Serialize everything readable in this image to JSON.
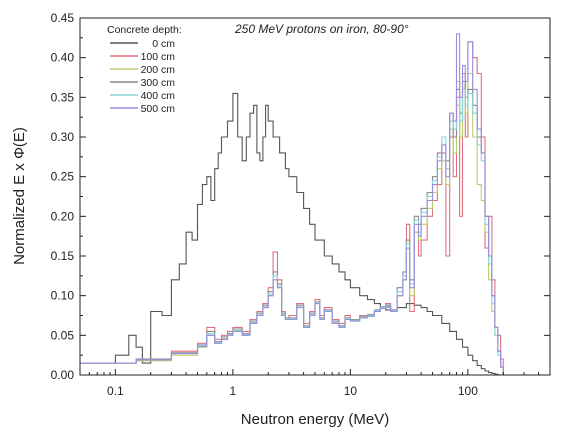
{
  "chart_data": {
    "type": "line",
    "title": "",
    "annotation": "250 MeV protons on iron, 80-90°",
    "xlabel": "Neutron energy (MeV)",
    "ylabel": "Normalized  E x Φ(E)",
    "xscale": "log",
    "xlim": [
      0.05,
      500
    ],
    "ylim": [
      0,
      0.45
    ],
    "grid": false,
    "x_ticks": [
      0.1,
      1,
      10,
      100
    ],
    "x_tick_labels": [
      "0.1",
      "1",
      "10",
      "100"
    ],
    "y_ticks": [
      0,
      0.05,
      0.1,
      0.15,
      0.2,
      0.25,
      0.3,
      0.35,
      0.4,
      0.45
    ],
    "y_tick_labels": [
      "0.00",
      "0.05",
      "0.10",
      "0.15",
      "0.20",
      "0.25",
      "0.30",
      "0.35",
      "0.40",
      "0.45"
    ],
    "legend": {
      "title": "Concrete depth:",
      "placement": "top-left"
    },
    "series": [
      {
        "name": "0 cm",
        "color": "#555555",
        "x": [
          0.05,
          0.1,
          0.13,
          0.15,
          0.17,
          0.2,
          0.25,
          0.3,
          0.35,
          0.4,
          0.45,
          0.5,
          0.55,
          0.6,
          0.65,
          0.7,
          0.75,
          0.8,
          0.9,
          1.0,
          1.1,
          1.2,
          1.3,
          1.4,
          1.5,
          1.6,
          1.7,
          1.8,
          1.9,
          2.0,
          2.2,
          2.5,
          2.8,
          3.0,
          3.5,
          4,
          4.5,
          5,
          6,
          7,
          8,
          9,
          10,
          12,
          14,
          16,
          18,
          20,
          25,
          30,
          35,
          40,
          45,
          50,
          60,
          70,
          80,
          90,
          100,
          110,
          120,
          130,
          140,
          150,
          160,
          170,
          180,
          190,
          200,
          220
        ],
        "y": [
          0.015,
          0.025,
          0.05,
          0.035,
          0.015,
          0.08,
          0.075,
          0.12,
          0.14,
          0.18,
          0.17,
          0.215,
          0.24,
          0.25,
          0.22,
          0.26,
          0.28,
          0.3,
          0.32,
          0.355,
          0.3,
          0.27,
          0.3,
          0.33,
          0.34,
          0.28,
          0.27,
          0.3,
          0.34,
          0.32,
          0.3,
          0.28,
          0.26,
          0.25,
          0.23,
          0.21,
          0.19,
          0.17,
          0.15,
          0.14,
          0.13,
          0.12,
          0.11,
          0.1,
          0.095,
          0.09,
          0.085,
          0.082,
          0.085,
          0.09,
          0.088,
          0.085,
          0.08,
          0.075,
          0.065,
          0.055,
          0.045,
          0.035,
          0.025,
          0.018,
          0.012,
          0.008,
          0.005,
          0.003,
          0.002,
          0.001,
          0.0,
          0.0,
          0.0,
          0.0
        ]
      },
      {
        "name": "100 cm",
        "color": "#e0707a",
        "x": [
          0.05,
          0.15,
          0.3,
          0.5,
          0.6,
          0.7,
          0.8,
          0.9,
          1.0,
          1.2,
          1.4,
          1.6,
          1.8,
          2.0,
          2.2,
          2.4,
          2.6,
          2.8,
          3.0,
          3.5,
          4,
          4.5,
          5,
          5.5,
          6,
          7,
          8,
          9,
          10,
          12,
          14,
          16,
          18,
          20,
          22,
          25,
          28,
          30,
          32,
          35,
          38,
          40,
          45,
          50,
          55,
          60,
          65,
          70,
          75,
          80,
          85,
          90,
          95,
          100,
          110,
          120,
          130,
          140,
          150,
          160,
          170,
          180,
          190,
          200
        ],
        "y": [
          0.015,
          0.02,
          0.03,
          0.04,
          0.06,
          0.045,
          0.05,
          0.055,
          0.06,
          0.055,
          0.07,
          0.08,
          0.09,
          0.11,
          0.155,
          0.12,
          0.08,
          0.07,
          0.075,
          0.09,
          0.065,
          0.08,
          0.095,
          0.075,
          0.085,
          0.07,
          0.065,
          0.075,
          0.07,
          0.075,
          0.075,
          0.08,
          0.085,
          0.09,
          0.08,
          0.1,
          0.12,
          0.19,
          0.08,
          0.18,
          0.15,
          0.17,
          0.2,
          0.22,
          0.24,
          0.28,
          0.15,
          0.3,
          0.25,
          0.35,
          0.2,
          0.38,
          0.3,
          0.42,
          0.4,
          0.38,
          0.3,
          0.16,
          0.2,
          0.12,
          0.06,
          0.05,
          0.02,
          0.0
        ]
      },
      {
        "name": "200 cm",
        "color": "#b8d068",
        "x": [
          0.05,
          0.15,
          0.3,
          0.5,
          0.6,
          0.7,
          0.8,
          0.9,
          1.0,
          1.2,
          1.4,
          1.6,
          1.8,
          2.0,
          2.2,
          2.4,
          2.6,
          2.8,
          3.0,
          3.5,
          4,
          4.5,
          5,
          5.5,
          6,
          7,
          8,
          9,
          10,
          12,
          14,
          16,
          18,
          20,
          22,
          25,
          28,
          30,
          32,
          35,
          38,
          40,
          45,
          50,
          55,
          60,
          65,
          70,
          75,
          80,
          85,
          90,
          95,
          100,
          110,
          120,
          130,
          140,
          150,
          160,
          170,
          180,
          190,
          200
        ],
        "y": [
          0.015,
          0.018,
          0.025,
          0.035,
          0.05,
          0.04,
          0.045,
          0.05,
          0.055,
          0.05,
          0.065,
          0.075,
          0.085,
          0.1,
          0.12,
          0.11,
          0.075,
          0.07,
          0.07,
          0.085,
          0.06,
          0.075,
          0.09,
          0.07,
          0.08,
          0.065,
          0.06,
          0.07,
          0.068,
          0.072,
          0.075,
          0.08,
          0.085,
          0.085,
          0.08,
          0.1,
          0.12,
          0.16,
          0.1,
          0.18,
          0.17,
          0.19,
          0.21,
          0.23,
          0.26,
          0.27,
          0.24,
          0.31,
          0.28,
          0.34,
          0.3,
          0.36,
          0.33,
          0.38,
          0.3,
          0.24,
          0.22,
          0.18,
          0.12,
          0.08,
          0.05,
          0.03,
          0.01,
          0.0
        ]
      },
      {
        "name": "300 cm",
        "color": "#8a8a8a",
        "x": [
          0.05,
          0.15,
          0.3,
          0.5,
          0.6,
          0.7,
          0.8,
          0.9,
          1.0,
          1.2,
          1.4,
          1.6,
          1.8,
          2.0,
          2.2,
          2.4,
          2.6,
          2.8,
          3.0,
          3.5,
          4,
          4.5,
          5,
          5.5,
          6,
          7,
          8,
          9,
          10,
          12,
          14,
          16,
          18,
          20,
          22,
          25,
          28,
          30,
          32,
          35,
          38,
          40,
          45,
          50,
          55,
          60,
          65,
          70,
          75,
          80,
          85,
          90,
          95,
          100,
          110,
          120,
          130,
          140,
          150,
          160,
          170,
          180,
          190,
          200
        ],
        "y": [
          0.015,
          0.02,
          0.028,
          0.038,
          0.055,
          0.042,
          0.048,
          0.052,
          0.058,
          0.052,
          0.068,
          0.078,
          0.088,
          0.105,
          0.13,
          0.115,
          0.078,
          0.072,
          0.072,
          0.088,
          0.062,
          0.078,
          0.092,
          0.072,
          0.082,
          0.068,
          0.062,
          0.072,
          0.07,
          0.074,
          0.076,
          0.082,
          0.086,
          0.088,
          0.082,
          0.11,
          0.13,
          0.17,
          0.12,
          0.2,
          0.19,
          0.21,
          0.23,
          0.25,
          0.28,
          0.29,
          0.27,
          0.33,
          0.3,
          0.36,
          0.33,
          0.37,
          0.35,
          0.36,
          0.34,
          0.3,
          0.28,
          0.2,
          0.15,
          0.1,
          0.06,
          0.03,
          0.01,
          0.0
        ]
      },
      {
        "name": "400 cm",
        "color": "#88d4d8",
        "x": [
          0.05,
          0.15,
          0.3,
          0.5,
          0.6,
          0.7,
          0.8,
          0.9,
          1.0,
          1.2,
          1.4,
          1.6,
          1.8,
          2.0,
          2.2,
          2.4,
          2.6,
          2.8,
          3.0,
          3.5,
          4,
          4.5,
          5,
          5.5,
          6,
          7,
          8,
          9,
          10,
          12,
          14,
          16,
          18,
          20,
          22,
          25,
          28,
          30,
          32,
          35,
          38,
          40,
          45,
          50,
          55,
          60,
          65,
          70,
          75,
          80,
          85,
          90,
          95,
          100,
          110,
          120,
          130,
          140,
          150,
          160,
          170,
          180,
          190,
          200
        ],
        "y": [
          0.015,
          0.019,
          0.027,
          0.037,
          0.052,
          0.041,
          0.046,
          0.051,
          0.056,
          0.051,
          0.066,
          0.076,
          0.086,
          0.102,
          0.125,
          0.112,
          0.076,
          0.071,
          0.071,
          0.086,
          0.061,
          0.076,
          0.091,
          0.071,
          0.081,
          0.066,
          0.061,
          0.071,
          0.069,
          0.073,
          0.075,
          0.081,
          0.085,
          0.087,
          0.081,
          0.105,
          0.125,
          0.165,
          0.115,
          0.195,
          0.18,
          0.205,
          0.225,
          0.245,
          0.275,
          0.3,
          0.26,
          0.32,
          0.31,
          0.37,
          0.32,
          0.36,
          0.34,
          0.355,
          0.33,
          0.29,
          0.27,
          0.19,
          0.14,
          0.09,
          0.05,
          0.025,
          0.01,
          0.0
        ]
      },
      {
        "name": "500 cm",
        "color": "#9a8ee0",
        "x": [
          0.05,
          0.15,
          0.3,
          0.5,
          0.6,
          0.7,
          0.8,
          0.9,
          1.0,
          1.2,
          1.4,
          1.6,
          1.8,
          2.0,
          2.2,
          2.4,
          2.6,
          2.8,
          3.0,
          3.5,
          4,
          4.5,
          5,
          5.5,
          6,
          7,
          8,
          9,
          10,
          12,
          14,
          16,
          18,
          20,
          22,
          25,
          28,
          30,
          32,
          35,
          38,
          40,
          45,
          50,
          55,
          60,
          65,
          70,
          75,
          80,
          85,
          90,
          95,
          100,
          110,
          120,
          130,
          140,
          150,
          160,
          170,
          180,
          190,
          200
        ],
        "y": [
          0.015,
          0.019,
          0.027,
          0.036,
          0.05,
          0.04,
          0.045,
          0.05,
          0.055,
          0.05,
          0.065,
          0.075,
          0.085,
          0.1,
          0.12,
          0.11,
          0.075,
          0.07,
          0.07,
          0.085,
          0.06,
          0.075,
          0.09,
          0.07,
          0.08,
          0.065,
          0.06,
          0.07,
          0.068,
          0.072,
          0.074,
          0.08,
          0.084,
          0.086,
          0.08,
          0.1,
          0.12,
          0.16,
          0.11,
          0.19,
          0.175,
          0.2,
          0.22,
          0.24,
          0.27,
          0.29,
          0.25,
          0.33,
          0.32,
          0.43,
          0.35,
          0.39,
          0.37,
          0.42,
          0.36,
          0.31,
          0.28,
          0.2,
          0.15,
          0.1,
          0.06,
          0.03,
          0.01,
          0.0
        ]
      }
    ]
  }
}
